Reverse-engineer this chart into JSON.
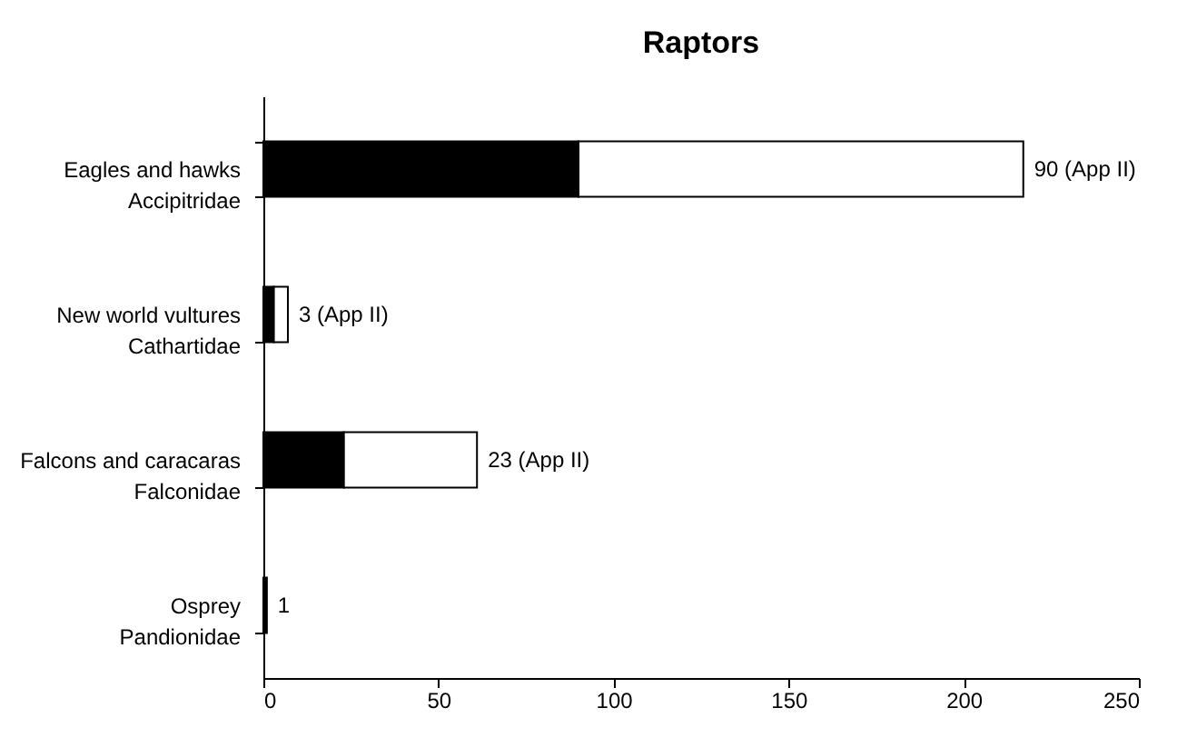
{
  "chart_data": {
    "type": "bar",
    "title": "Raptors",
    "orientation": "horizontal",
    "stacked": true,
    "categories": [
      "Eagles and hawks\nAccipitridae",
      "New world vultures\nCathartidae",
      "Falcons and caracaras\nFalconidae",
      "Osprey\nPandionidae"
    ],
    "series": [
      {
        "color": "#000000",
        "values": [
          90,
          3,
          23,
          1
        ]
      },
      {
        "color": "#ffffff",
        "values": [
          127,
          4,
          38,
          null
        ]
      }
    ],
    "annotations": [
      {
        "text": "90 (App II)",
        "x": 217,
        "y": "Eagles and hawks\nAccipitridae"
      },
      {
        "text": "3 (App II)",
        "x": 7,
        "y": "New world vultures\nCathartidae"
      },
      {
        "text": "23 (App II)",
        "x": 61,
        "y": "Falcons and caracaras\nFalconidae"
      },
      {
        "text": "1",
        "x": 1,
        "y": "Osprey\nPandionidae"
      }
    ],
    "xlim": [
      0,
      250
    ],
    "xticks": [
      0,
      50,
      100,
      150,
      200,
      250
    ],
    "grid": false
  }
}
